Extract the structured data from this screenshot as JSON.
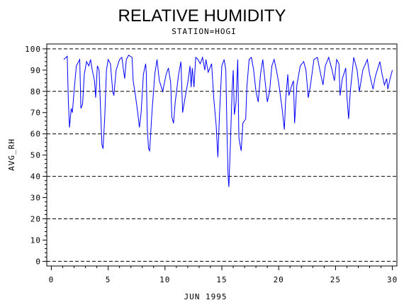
{
  "chart_data": {
    "type": "line",
    "title": "RELATIVE HUMIDITY",
    "subtitle": "STATION=HOGI",
    "xlabel": "JUN 1995",
    "ylabel": "AVG_RH",
    "xlim": [
      -0.4,
      30.4
    ],
    "ylim": [
      -2.2,
      102.3
    ],
    "xticks": [
      0,
      5,
      10,
      15,
      20,
      25,
      30
    ],
    "yticks": [
      0,
      10,
      20,
      30,
      40,
      50,
      60,
      70,
      80,
      90,
      100
    ],
    "ygrid": [
      0,
      20,
      40,
      60,
      80,
      100
    ],
    "x": [
      1.1,
      1.4,
      1.5,
      1.6,
      1.75,
      1.85,
      2.0,
      2.2,
      2.5,
      2.6,
      2.75,
      2.9,
      3.1,
      3.3,
      3.45,
      3.6,
      3.8,
      3.9,
      4.05,
      4.2,
      4.3,
      4.45,
      4.55,
      4.7,
      4.85,
      5.0,
      5.2,
      5.4,
      5.5,
      5.7,
      6.0,
      6.2,
      6.45,
      6.6,
      6.8,
      7.1,
      7.2,
      7.4,
      7.6,
      7.75,
      7.9,
      8.1,
      8.3,
      8.35,
      8.45,
      8.55,
      8.65,
      8.85,
      9.1,
      9.3,
      9.5,
      9.8,
      10.1,
      10.3,
      10.5,
      10.6,
      10.75,
      10.9,
      11.2,
      11.4,
      11.55,
      11.7,
      12.0,
      12.2,
      12.3,
      12.4,
      12.55,
      12.7,
      12.9,
      13.1,
      13.3,
      13.5,
      13.6,
      13.8,
      14.1,
      14.3,
      14.5,
      14.65,
      14.8,
      15.0,
      15.2,
      15.35,
      15.45,
      15.55,
      15.62,
      15.75,
      15.9,
      16.0,
      16.1,
      16.25,
      16.4,
      16.5,
      16.7,
      16.85,
      17.1,
      17.2,
      17.4,
      17.6,
      17.8,
      18.0,
      18.2,
      18.4,
      18.6,
      18.8,
      19.0,
      19.2,
      19.4,
      19.6,
      19.8,
      20.0,
      20.3,
      20.5,
      20.6,
      20.8,
      20.9,
      21.1,
      21.3,
      21.4,
      21.6,
      21.9,
      22.2,
      22.4,
      22.6,
      22.8,
      23.1,
      23.4,
      23.7,
      23.9,
      24.1,
      24.4,
      24.7,
      24.9,
      25.1,
      25.3,
      25.4,
      25.6,
      25.9,
      26.0,
      26.15,
      26.3,
      26.6,
      26.9,
      27.1,
      27.4,
      27.8,
      28.0,
      28.3,
      28.5,
      28.9,
      29.1,
      29.3,
      29.5,
      29.6,
      29.8,
      30.0
    ],
    "series": [
      {
        "name": "AVG_RH",
        "color": "#0000ff",
        "values": [
          95,
          96.5,
          75,
          63,
          72,
          70,
          80,
          92,
          95,
          72,
          74,
          88,
          94,
          92,
          95,
          90,
          85,
          77,
          92,
          90,
          76,
          55,
          53,
          68,
          90,
          95,
          93,
          80,
          78,
          90,
          95,
          96,
          86,
          95,
          97,
          96,
          85,
          78,
          70,
          63,
          70,
          88,
          93,
          89,
          62,
          53,
          52,
          70,
          88,
          95,
          85,
          80,
          88,
          91,
          84,
          68,
          65,
          75,
          88,
          94,
          70,
          75,
          84,
          92,
          82,
          91,
          82,
          96,
          95,
          93,
          96,
          90,
          95,
          89,
          93,
          76,
          64,
          49,
          70,
          92,
          95,
          90,
          62,
          40,
          35,
          55,
          80,
          90,
          69,
          75,
          95,
          58,
          52,
          65,
          67,
          82,
          95,
          96,
          90,
          80,
          75,
          88,
          95,
          85,
          75,
          80,
          92,
          95,
          90,
          84,
          72,
          62,
          75,
          88,
          78,
          82,
          85,
          65,
          83,
          92,
          94,
          90,
          77,
          83,
          95,
          96,
          88,
          83,
          92,
          96,
          90,
          85,
          95,
          93,
          78,
          86,
          91,
          78,
          67,
          80,
          96,
          90,
          80,
          90,
          95,
          88,
          81,
          87,
          94,
          88,
          83,
          86,
          81,
          86,
          90
        ]
      }
    ]
  }
}
